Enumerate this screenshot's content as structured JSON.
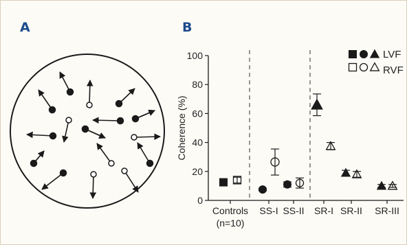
{
  "panels": {
    "a_label": "A",
    "b_label": "B"
  },
  "colors": {
    "panel_label": "#1a4b8c",
    "ink": "#1a1a1a",
    "background": "#fdfbf6"
  },
  "panel_a": {
    "description_type": "diagram",
    "units": [
      {
        "fill": "filled"
      },
      {
        "fill": "open"
      },
      {
        "fill": "filled"
      },
      {
        "fill": "filled"
      },
      {
        "fill": "filled"
      },
      {
        "fill": "open"
      },
      {
        "fill": "open"
      },
      {
        "fill": "open"
      },
      {
        "fill": "filled"
      },
      {
        "fill": "open"
      },
      {
        "fill": "open"
      },
      {
        "fill": "filled"
      },
      {
        "fill": "filled"
      },
      {
        "fill": "open"
      },
      {
        "fill": "filled"
      },
      {
        "fill": "open"
      },
      {
        "fill": "filled"
      },
      {
        "fill": "filled"
      },
      {
        "fill": "filled"
      }
    ]
  },
  "chart_data": {
    "type": "scatter",
    "title": "",
    "xlabel": "",
    "ylabel": "Coherence (%)",
    "ylim": [
      0,
      100
    ],
    "yticks": [
      0,
      20,
      40,
      60,
      80,
      100
    ],
    "grid": false,
    "legend_placement": "top-right",
    "legend": {
      "rows": [
        {
          "label": "LVF",
          "symbols": [
            "filled-square",
            "filled-circle",
            "filled-triangle"
          ]
        },
        {
          "label": "RVF",
          "symbols": [
            "open-square",
            "open-circle",
            "open-triangle"
          ]
        }
      ]
    },
    "groups": [
      {
        "label": "Controls",
        "sublabel": "(n=10)",
        "marker": "square"
      },
      {
        "label": "SS-I",
        "sublabel": "",
        "marker": "circle"
      },
      {
        "label": "SS-II",
        "sublabel": "",
        "marker": "circle"
      },
      {
        "label": "SR-I",
        "sublabel": "",
        "marker": "triangle"
      },
      {
        "label": "SR-II",
        "sublabel": "",
        "marker": "triangle"
      },
      {
        "label": "SR-III",
        "sublabel": "",
        "marker": "triangle"
      }
    ],
    "dividers_after_groups": [
      0,
      2
    ],
    "series": [
      {
        "name": "LVF",
        "fill": "filled",
        "values": [
          12.5,
          7.5,
          11,
          66,
          19,
          10
        ],
        "errors": [
          1.5,
          0.8,
          1.8,
          7.5,
          1.8,
          1.0
        ]
      },
      {
        "name": "RVF",
        "fill": "open",
        "values": [
          14,
          26.5,
          12,
          37.5,
          18,
          10
        ],
        "errors": [
          2.0,
          9.0,
          3.5,
          2.5,
          2.0,
          1.0
        ]
      }
    ]
  }
}
